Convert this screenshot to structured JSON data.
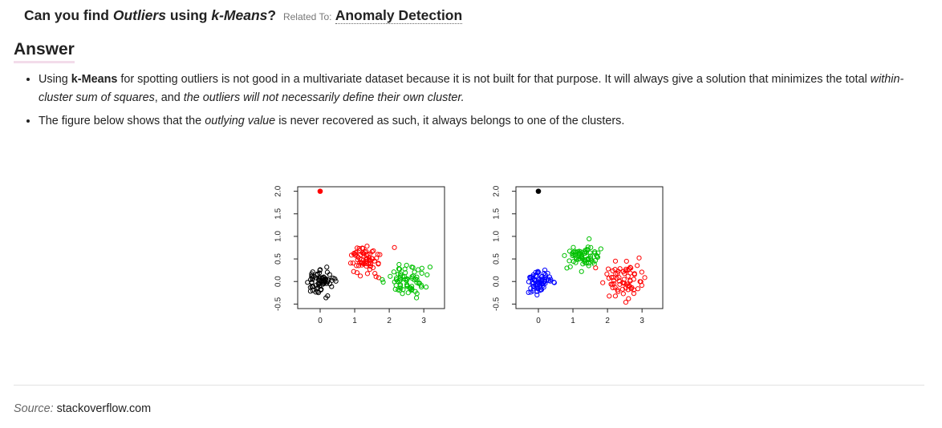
{
  "question": {
    "prefix": "Can you find ",
    "em1": "Outliers",
    "middle": " using ",
    "em2": "k-Means",
    "suffix": "?",
    "related_label": "Related To:",
    "related_link": "Anomaly Detection"
  },
  "answer": {
    "heading": "Answer",
    "bullet1": {
      "t1": "Using ",
      "b1": "k-Means",
      "t2": " for spotting outliers is not good in a multivariate dataset because it is not built for that purpose. It will always give a solution that minimizes the total ",
      "i1": "within-cluster sum of squares",
      "t3": ", and ",
      "i2": "the outliers will not necessarily define their own cluster."
    },
    "bullet2": {
      "t1": "The figure below shows that the ",
      "i1": "outlying value",
      "t2": " is never recovered as such, it always belongs to one of the clusters."
    }
  },
  "source": {
    "label": "Source:",
    "value": "stackoverflow.com"
  },
  "chart_data": [
    {
      "type": "scatter",
      "xticks": [
        "0",
        "1",
        "2",
        "3"
      ],
      "yticks": [
        "-0.5",
        "0.0",
        "0.5",
        "1.0",
        "1.5",
        "2.0"
      ],
      "xlim": [
        -0.65,
        3.6
      ],
      "ylim": [
        -0.6,
        2.1
      ],
      "outlier": {
        "x": 0,
        "y": 2.0,
        "color": "#ff0000"
      },
      "clusters": [
        {
          "color": "#000000",
          "cx": 0,
          "cy": 0,
          "sx": 0.2,
          "sy": 0.15,
          "n": 70
        },
        {
          "color": "#ff0000",
          "cx": 1.3,
          "cy": 0.5,
          "sx": 0.25,
          "sy": 0.15,
          "n": 70
        },
        {
          "color": "#00c000",
          "cx": 2.5,
          "cy": 0.05,
          "sx": 0.3,
          "sy": 0.17,
          "n": 70
        }
      ]
    },
    {
      "type": "scatter",
      "xticks": [
        "0",
        "1",
        "2",
        "3"
      ],
      "yticks": [
        "-0.5",
        "0.0",
        "0.5",
        "1.0",
        "1.5",
        "2.0"
      ],
      "xlim": [
        -0.65,
        3.6
      ],
      "ylim": [
        -0.6,
        2.1
      ],
      "outlier": {
        "x": 0,
        "y": 2.0,
        "color": "#000000"
      },
      "clusters": [
        {
          "color": "#0000ff",
          "cx": 0,
          "cy": 0,
          "sx": 0.17,
          "sy": 0.12,
          "n": 70
        },
        {
          "color": "#00c000",
          "cx": 1.3,
          "cy": 0.55,
          "sx": 0.25,
          "sy": 0.15,
          "n": 70
        },
        {
          "color": "#ff0000",
          "cx": 2.5,
          "cy": 0.0,
          "sx": 0.3,
          "sy": 0.17,
          "n": 70
        }
      ]
    }
  ]
}
